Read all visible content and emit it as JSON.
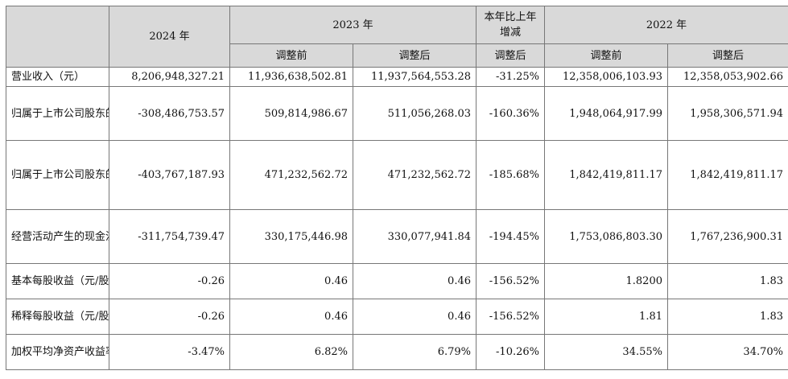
{
  "header": {
    "y2024": "2024 年",
    "y2023": "2023 年",
    "change": "本年比上年增减",
    "y2022": "2022 年",
    "before": "调整前",
    "after": "调整后"
  },
  "rows": [
    {
      "label": "营业收入（元）",
      "v2024": "8,206,948,327.21",
      "v2023_before": "11,936,638,502.81",
      "v2023_after": "11,937,564,553.28",
      "change": "-31.25%",
      "v2022_before": "12,358,006,103.93",
      "v2022_after": "12,358,053,902.66"
    },
    {
      "label": "归属于上市公司股东的净利润（元）",
      "v2024": "-308,486,753.57",
      "v2023_before": "509,814,986.67",
      "v2023_after": "511,056,268.03",
      "change": "-160.36%",
      "v2022_before": "1,948,064,917.99",
      "v2022_after": "1,958,306,571.94"
    },
    {
      "label": "归属于上市公司股东的扣除非经常性损益的净利润（元）",
      "v2024": "-403,767,187.93",
      "v2023_before": "471,232,562.72",
      "v2023_after": "471,232,562.72",
      "change": "-185.68%",
      "v2022_before": "1,842,419,811.17",
      "v2022_after": "1,842,419,811.17"
    },
    {
      "label": "经营活动产生的现金流量净额（元）",
      "v2024": "-311,754,739.47",
      "v2023_before": "330,175,446.98",
      "v2023_after": "330,077,941.84",
      "change": "-194.45%",
      "v2022_before": "1,753,086,803.30",
      "v2022_after": "1,767,236,900.31"
    },
    {
      "label": "基本每股收益（元/股）",
      "v2024": "-0.26",
      "v2023_before": "0.46",
      "v2023_after": "0.46",
      "change": "-156.52%",
      "v2022_before": "1.8200",
      "v2022_after": "1.83"
    },
    {
      "label": "稀释每股收益（元/股）",
      "v2024": "-0.26",
      "v2023_before": "0.46",
      "v2023_after": "0.46",
      "change": "-156.52%",
      "v2022_before": "1.81",
      "v2022_after": "1.83"
    },
    {
      "label": "加权平均净资产收益率",
      "v2024": "-3.47%",
      "v2023_before": "6.82%",
      "v2023_after": "6.79%",
      "change": "-10.26%",
      "v2022_before": "34.55%",
      "v2022_after": "34.70%"
    }
  ]
}
